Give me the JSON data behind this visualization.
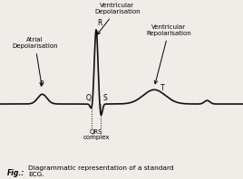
{
  "background_color": "#f0ede8",
  "ecg_color": "#111111",
  "line_width": 1.2,
  "fig_caption_bold": "Fig.:",
  "fig_caption_normal": " Diagrammatic representation of a standard ECG.",
  "labels": {
    "P": "P",
    "Q": "Q",
    "R": "R",
    "S": "S",
    "T": "T"
  },
  "annotations": {
    "atrial": "Atrial\nDepolarisation",
    "ventricular_dep": "Ventricular\nDepolarisation",
    "ventricular_rep": "Ventricular\nRepolarisation",
    "qrs_line1": "QRS",
    "qrs_line2": "complex"
  },
  "ecg_xlim": [
    -0.5,
    11.0
  ],
  "ecg_ylim": [
    -0.55,
    1.55
  ]
}
